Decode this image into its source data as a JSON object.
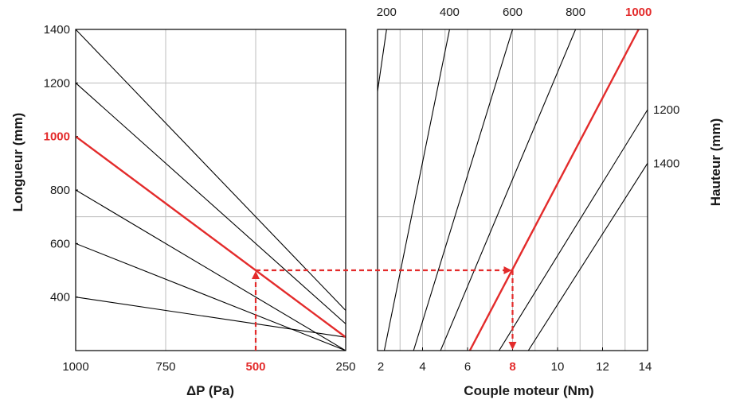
{
  "chart_data": [
    {
      "type": "line",
      "panel": "left",
      "xlabel": "ΔP (Pa)",
      "ylabel": "Longueur (mm)",
      "xlim": [
        1000,
        250
      ],
      "ylim": [
        200,
        1400
      ],
      "x_ticks": [
        "1000",
        "750",
        "500",
        "250"
      ],
      "y_ticks": [
        "400",
        "600",
        "800",
        "1000",
        "1200",
        "1400"
      ],
      "highlight_x": "500",
      "highlight_y": "1000",
      "series": [
        {
          "x": [
            1000,
            250
          ],
          "y": [
            400,
            250
          ]
        },
        {
          "x": [
            1000,
            250
          ],
          "y": [
            600,
            200
          ]
        },
        {
          "x": [
            1000,
            250
          ],
          "y": [
            800,
            200
          ]
        },
        {
          "x": [
            1000,
            250
          ],
          "y": [
            1000,
            250
          ],
          "highlight": true
        },
        {
          "x": [
            1000,
            250
          ],
          "y": [
            1200,
            300
          ]
        },
        {
          "x": [
            1000,
            250
          ],
          "y": [
            1400,
            350
          ]
        }
      ],
      "reading": {
        "x": 500,
        "y": 500
      },
      "grid": true
    },
    {
      "type": "line",
      "panel": "right",
      "xlabel": "Couple moteur (Nm)",
      "ylabel": "Hauteur (mm)",
      "xlim": [
        2,
        14
      ],
      "ylim": [
        200,
        1400
      ],
      "x_ticks": [
        "2",
        "4",
        "6",
        "8",
        "10",
        "12",
        "14"
      ],
      "highlight_x": "8",
      "top_labels": [
        "200",
        "400",
        "600",
        "800",
        "1000"
      ],
      "highlight_top": "1000",
      "side_labels": [
        "1200",
        "1400"
      ],
      "series": [
        {
          "label": "200",
          "x": [
            0.5,
            2.4
          ],
          "y": [
            300,
            1400
          ]
        },
        {
          "label": "400",
          "x": [
            2.3,
            5.2
          ],
          "y": [
            200,
            1400
          ]
        },
        {
          "label": "600",
          "x": [
            3.6,
            8.0
          ],
          "y": [
            200,
            1400
          ]
        },
        {
          "label": "800",
          "x": [
            4.8,
            10.8
          ],
          "y": [
            200,
            1400
          ]
        },
        {
          "label": "1000",
          "x": [
            6.1,
            13.6
          ],
          "y": [
            200,
            1400
          ],
          "highlight": true
        },
        {
          "label": "1200",
          "x": [
            7.4,
            14.0
          ],
          "y": [
            200,
            1100
          ]
        },
        {
          "label": "1400",
          "x": [
            8.7,
            14.0
          ],
          "y": [
            200,
            900
          ]
        }
      ],
      "reading": {
        "x": 8,
        "y": 500
      },
      "grid": true
    }
  ],
  "colors": {
    "highlight": "#e32b2b",
    "line": "#000000",
    "grid": "#bdbdbd"
  }
}
